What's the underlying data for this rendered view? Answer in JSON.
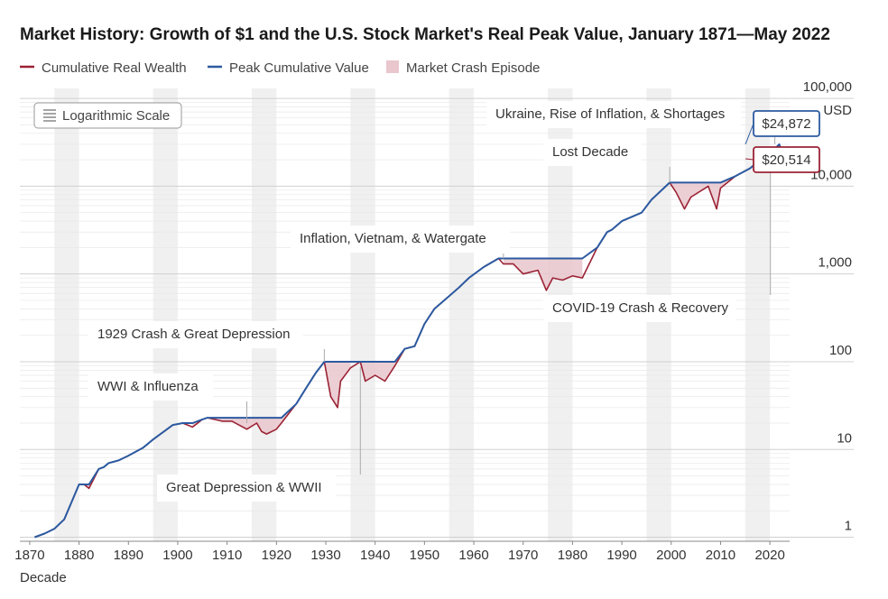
{
  "chart_data": {
    "type": "line",
    "title": "Market History: Growth of $1 and the U.S. Stock Market's Real Peak Value, January 1871—May 2022",
    "xlabel": "Decade",
    "ylabel": "",
    "y_scale": "log",
    "scale_badge": "Logarithmic Scale",
    "xlim": [
      1868,
      2024
    ],
    "ylim": [
      0.9,
      130000
    ],
    "x_ticks": [
      1870,
      1880,
      1890,
      1900,
      1910,
      1920,
      1930,
      1940,
      1950,
      1960,
      1970,
      1980,
      1990,
      2000,
      2010,
      2020
    ],
    "y_ticks": [
      {
        "value": 1,
        "label": "1"
      },
      {
        "value": 10,
        "label": "10"
      },
      {
        "value": 100,
        "label": "100"
      },
      {
        "value": 1000,
        "label": "1,000"
      },
      {
        "value": 10000,
        "label": "10,000"
      },
      {
        "value": 100000,
        "label": "100,000"
      }
    ],
    "y_unit": "USD",
    "legend": {
      "placement": "top-left",
      "entries": [
        {
          "name": "Cumulative Real Wealth",
          "color": "#9b2335",
          "kind": "line"
        },
        {
          "name": "Peak Cumulative Value",
          "color": "#2c5aa0",
          "kind": "line"
        },
        {
          "name": "Market Crash Episode",
          "color": "#e9c7cd",
          "kind": "swatch"
        }
      ]
    },
    "decade_bands": true,
    "series": [
      {
        "name": "Cumulative Real Wealth",
        "color": "#9b2335",
        "x": [
          1871,
          1873,
          1875,
          1877,
          1880,
          1881,
          1882,
          1884,
          1885,
          1886,
          1888,
          1890,
          1893,
          1895,
          1899,
          1901,
          1903,
          1905,
          1906,
          1909,
          1911,
          1914,
          1916,
          1917,
          1918,
          1920,
          1921,
          1924,
          1926,
          1928,
          1929.7,
          1931,
          1932.4,
          1933,
          1935,
          1937,
          1938,
          1940,
          1942,
          1944,
          1946,
          1948,
          1950,
          1952,
          1954,
          1957,
          1959,
          1962,
          1965,
          1966,
          1968,
          1970,
          1973,
          1974.7,
          1976,
          1978,
          1980,
          1982,
          1985,
          1987,
          1988,
          1990,
          1994,
          1996,
          1999.7,
          2001,
          2002.7,
          2004,
          2007.5,
          2009.2,
          2010,
          2013,
          2016,
          2018,
          2020.1,
          2020.5,
          2021.9,
          2022.4
        ],
        "y": [
          1,
          1.1,
          1.25,
          1.6,
          4,
          4,
          3.6,
          6,
          6.3,
          7,
          7.5,
          8.5,
          10.5,
          13,
          19,
          20,
          18,
          22,
          23,
          21,
          21,
          17,
          20,
          16,
          15,
          17,
          20,
          33,
          50,
          75,
          100,
          40,
          30,
          60,
          85,
          100,
          60,
          70,
          60,
          90,
          140,
          150,
          270,
          400,
          500,
          700,
          900,
          1200,
          1500,
          1300,
          1300,
          1000,
          1100,
          650,
          900,
          850,
          950,
          900,
          2000,
          3000,
          3200,
          4000,
          5000,
          7000,
          11000,
          8500,
          5500,
          7500,
          10000,
          5500,
          9500,
          13000,
          16000,
          20000,
          21000,
          25000,
          30000,
          20514
        ]
      },
      {
        "name": "Peak Cumulative Value",
        "color": "#2c5aa0",
        "x": [
          1871,
          1873,
          1875,
          1877,
          1880,
          1881,
          1882,
          1884,
          1885,
          1886,
          1888,
          1890,
          1893,
          1895,
          1899,
          1901,
          1903,
          1905,
          1906,
          1909,
          1911,
          1914,
          1916,
          1917,
          1918,
          1920,
          1921,
          1924,
          1926,
          1928,
          1929.7,
          1931,
          1932.4,
          1933,
          1935,
          1937,
          1938,
          1940,
          1942,
          1944,
          1946,
          1948,
          1950,
          1952,
          1954,
          1957,
          1959,
          1962,
          1965,
          1966,
          1968,
          1970,
          1973,
          1974.7,
          1976,
          1978,
          1980,
          1982,
          1985,
          1987,
          1988,
          1990,
          1994,
          1996,
          1999.7,
          2001,
          2002.7,
          2004,
          2007.5,
          2009.2,
          2010,
          2013,
          2016,
          2018,
          2020.1,
          2020.5,
          2021.9,
          2022.4
        ],
        "y": [
          1,
          1.1,
          1.25,
          1.6,
          4,
          4,
          4,
          6,
          6.3,
          7,
          7.5,
          8.5,
          10.5,
          13,
          19,
          20,
          20,
          22,
          23,
          23,
          23,
          23,
          23,
          23,
          23,
          23,
          23,
          33,
          50,
          75,
          100,
          100,
          100,
          100,
          100,
          100,
          100,
          100,
          100,
          100,
          140,
          150,
          270,
          400,
          500,
          700,
          900,
          1200,
          1500,
          1500,
          1500,
          1500,
          1500,
          1500,
          1500,
          1500,
          1500,
          1500,
          2000,
          3000,
          3200,
          4000,
          5000,
          7000,
          11000,
          11000,
          11000,
          11000,
          11000,
          11000,
          11000,
          13000,
          16000,
          20000,
          21000,
          25000,
          30000,
          24872
        ]
      }
    ],
    "crash_episodes": [
      {
        "start": 1881,
        "end": 1884
      },
      {
        "start": 1902,
        "end": 1905
      },
      {
        "start": 1906,
        "end": 1924
      },
      {
        "start": 1929.7,
        "end": 1936.5
      },
      {
        "start": 1937,
        "end": 1945.5
      },
      {
        "start": 1966,
        "end": 1982
      },
      {
        "start": 1999.7,
        "end": 2013
      },
      {
        "start": 2020.1,
        "end": 2020.5
      },
      {
        "start": 2021.9,
        "end": 2022.4
      }
    ],
    "annotations": [
      {
        "text": "WWI & Influenza",
        "x": 1914,
        "y": 20
      },
      {
        "text": "1929 Crash & Great Depression",
        "x": 1929.7,
        "y": 100
      },
      {
        "text": "Great Depression & WWII",
        "x": 1937,
        "y": 100
      },
      {
        "text": "Inflation, Vietnam, & Watergate",
        "x": 1966,
        "y": 1500
      },
      {
        "text": "Lost Decade",
        "x": 1999.7,
        "y": 11000
      },
      {
        "text": "COVID-19 Crash & Recovery",
        "x": 2020.1,
        "y": 21000
      },
      {
        "text": "Ukraine, Rise of Inflation, & Shortages",
        "x": 2022,
        "y": 30000
      }
    ],
    "value_labels": [
      {
        "text": "$24,872",
        "series": "Peak Cumulative Value",
        "color": "#2c5aa0"
      },
      {
        "text": "$20,514",
        "series": "Cumulative Real Wealth",
        "color": "#9b2335"
      }
    ]
  }
}
